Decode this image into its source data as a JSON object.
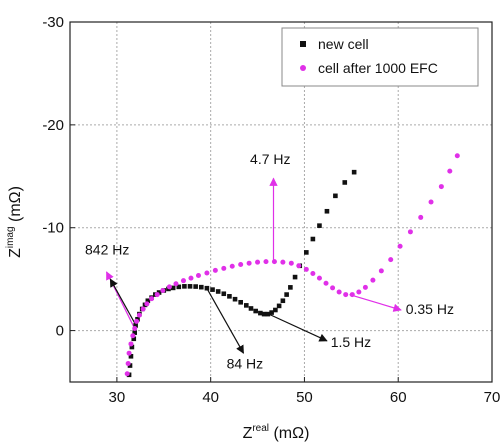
{
  "chart_data": {
    "type": "scatter",
    "xlabel": {
      "base": "Z",
      "sup": "real",
      "unit": " (mΩ)"
    },
    "ylabel": {
      "base": "Z",
      "sup": "imag",
      "unit": " (mΩ)"
    },
    "xlim": [
      25,
      70
    ],
    "ylim": [
      5,
      -30
    ],
    "y_inverted": true,
    "grid": true,
    "grid_style": "dotted",
    "legend_position": "top-right",
    "x_ticks": [
      {
        "value": 30,
        "label": "30"
      },
      {
        "value": 40,
        "label": "40"
      },
      {
        "value": 50,
        "label": "50"
      },
      {
        "value": 60,
        "label": "60"
      },
      {
        "value": 70,
        "label": "70"
      }
    ],
    "y_ticks": [
      {
        "value": 0,
        "label": "0"
      },
      {
        "value": -10,
        "label": "-10"
      },
      {
        "value": -20,
        "label": "-20"
      },
      {
        "value": -30,
        "label": "-30"
      }
    ],
    "series": [
      {
        "name": "new cell",
        "color": "#111111",
        "marker": "square",
        "points": [
          [
            31.3,
            4.3
          ],
          [
            31.4,
            3.4
          ],
          [
            31.5,
            2.5
          ],
          [
            31.6,
            1.6
          ],
          [
            31.8,
            0.8
          ],
          [
            31.9,
            0.2
          ],
          [
            32.0,
            -0.5
          ],
          [
            32.2,
            -1.1
          ],
          [
            32.4,
            -1.6
          ],
          [
            32.7,
            -2.1
          ],
          [
            33.0,
            -2.5
          ],
          [
            33.3,
            -2.9
          ],
          [
            33.7,
            -3.2
          ],
          [
            34.1,
            -3.5
          ],
          [
            34.5,
            -3.7
          ],
          [
            35.0,
            -3.9
          ],
          [
            35.5,
            -4.05
          ],
          [
            36.0,
            -4.15
          ],
          [
            36.6,
            -4.25
          ],
          [
            37.2,
            -4.3
          ],
          [
            37.8,
            -4.3
          ],
          [
            38.4,
            -4.28
          ],
          [
            39.0,
            -4.22
          ],
          [
            39.6,
            -4.12
          ],
          [
            40.2,
            -3.98
          ],
          [
            40.8,
            -3.8
          ],
          [
            41.4,
            -3.58
          ],
          [
            42.0,
            -3.33
          ],
          [
            42.6,
            -3.05
          ],
          [
            43.2,
            -2.75
          ],
          [
            43.8,
            -2.45
          ],
          [
            44.3,
            -2.15
          ],
          [
            44.8,
            -1.9
          ],
          [
            45.3,
            -1.7
          ],
          [
            45.7,
            -1.6
          ],
          [
            46.1,
            -1.6
          ],
          [
            46.5,
            -1.75
          ],
          [
            46.9,
            -2.0
          ],
          [
            47.3,
            -2.4
          ],
          [
            47.7,
            -2.9
          ],
          [
            48.1,
            -3.5
          ],
          [
            48.5,
            -4.2
          ],
          [
            49.0,
            -5.2
          ],
          [
            49.5,
            -6.3
          ],
          [
            50.2,
            -7.6
          ],
          [
            50.9,
            -8.9
          ],
          [
            51.6,
            -10.2
          ],
          [
            52.4,
            -11.6
          ],
          [
            53.3,
            -13.1
          ],
          [
            54.3,
            -14.4
          ],
          [
            55.3,
            -15.4
          ]
        ]
      },
      {
        "name": "cell after 1000 EFC",
        "color": "#e030e8",
        "marker": "circle",
        "points": [
          [
            31.1,
            4.2
          ],
          [
            31.2,
            3.2
          ],
          [
            31.3,
            2.2
          ],
          [
            31.5,
            1.3
          ],
          [
            31.7,
            0.5
          ],
          [
            31.9,
            -0.2
          ],
          [
            32.1,
            -0.9
          ],
          [
            32.4,
            -1.5
          ],
          [
            32.8,
            -2.1
          ],
          [
            33.2,
            -2.6
          ],
          [
            33.7,
            -3.1
          ],
          [
            34.3,
            -3.5
          ],
          [
            34.9,
            -3.9
          ],
          [
            35.6,
            -4.25
          ],
          [
            36.3,
            -4.55
          ],
          [
            37.1,
            -4.85
          ],
          [
            37.9,
            -5.1
          ],
          [
            38.7,
            -5.35
          ],
          [
            39.6,
            -5.6
          ],
          [
            40.5,
            -5.85
          ],
          [
            41.4,
            -6.05
          ],
          [
            42.3,
            -6.25
          ],
          [
            43.2,
            -6.42
          ],
          [
            44.1,
            -6.55
          ],
          [
            45.0,
            -6.65
          ],
          [
            45.9,
            -6.7
          ],
          [
            46.8,
            -6.7
          ],
          [
            47.7,
            -6.65
          ],
          [
            48.6,
            -6.55
          ],
          [
            49.4,
            -6.3
          ],
          [
            50.2,
            -5.95
          ],
          [
            50.9,
            -5.55
          ],
          [
            51.6,
            -5.1
          ],
          [
            52.3,
            -4.6
          ],
          [
            53.0,
            -4.15
          ],
          [
            53.7,
            -3.75
          ],
          [
            54.4,
            -3.5
          ],
          [
            55.1,
            -3.5
          ],
          [
            55.8,
            -3.75
          ],
          [
            56.5,
            -4.2
          ],
          [
            57.3,
            -4.9
          ],
          [
            58.2,
            -5.8
          ],
          [
            59.2,
            -6.9
          ],
          [
            60.2,
            -8.2
          ],
          [
            61.3,
            -9.6
          ],
          [
            62.4,
            -11.0
          ],
          [
            63.5,
            -12.5
          ],
          [
            64.6,
            -14.0
          ],
          [
            65.5,
            -15.5
          ],
          [
            66.3,
            -17.0
          ]
        ]
      }
    ],
    "annotations": [
      {
        "text": "842 Hz",
        "color": "#e030e8",
        "from": [
          32.0,
          0.0
        ],
        "to": [
          28.9,
          -5.7
        ],
        "label_pos": [
          26.6,
          -7.4
        ]
      },
      {
        "text": "842 Hz",
        "color": "#111111",
        "from": [
          32.1,
          -0.4
        ],
        "to": [
          29.3,
          -5.0
        ],
        "label_pos": null
      },
      {
        "text": "4.7 Hz",
        "color": "#e030e8",
        "from": [
          46.7,
          -6.7
        ],
        "to": [
          46.7,
          -14.8
        ],
        "label_pos": [
          44.2,
          -16.2
        ]
      },
      {
        "text": "84 Hz",
        "color": "#111111",
        "from": [
          39.6,
          -4.1
        ],
        "to": [
          43.5,
          2.2
        ],
        "label_pos": [
          41.7,
          3.7
        ]
      },
      {
        "text": "1.5 Hz",
        "color": "#111111",
        "from": [
          46.2,
          -1.6
        ],
        "to": [
          52.4,
          1.0
        ],
        "label_pos": [
          52.8,
          1.6
        ]
      },
      {
        "text": "0.35 Hz",
        "color": "#e030e8",
        "from": [
          54.8,
          -3.5
        ],
        "to": [
          60.3,
          -2.0
        ],
        "label_pos": [
          60.8,
          -1.6
        ]
      }
    ]
  }
}
